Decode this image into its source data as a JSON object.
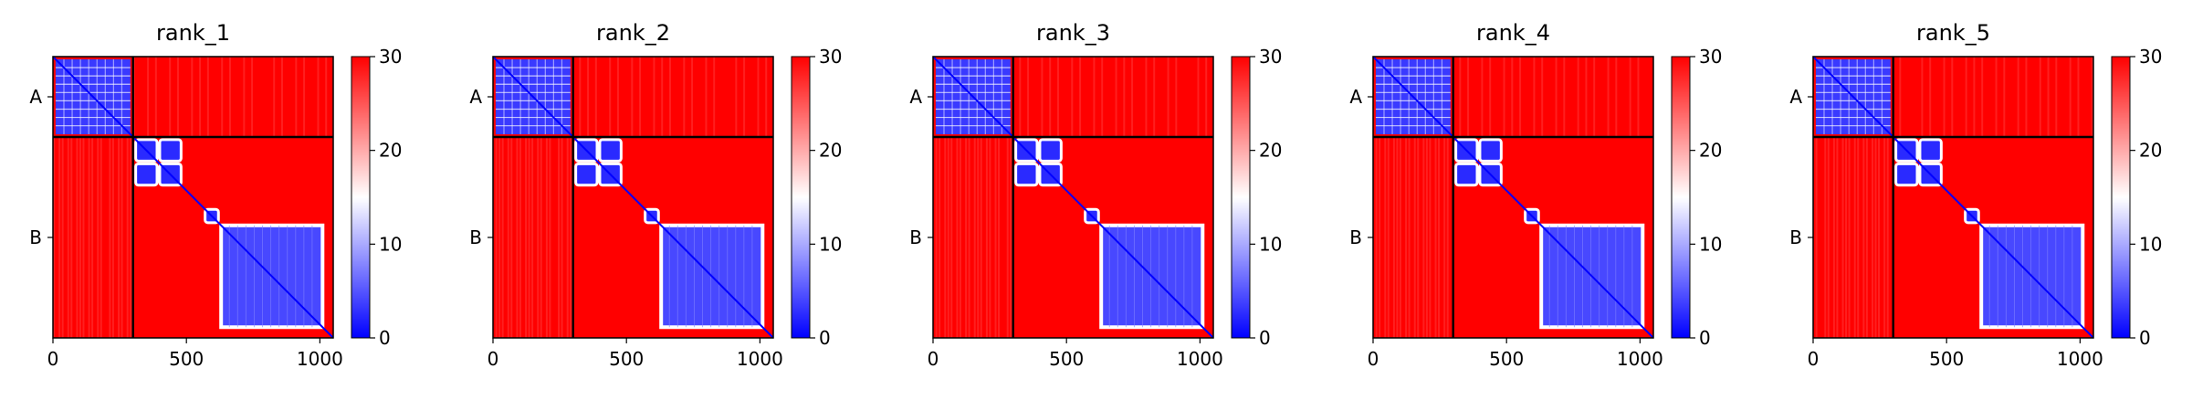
{
  "chart_data": [
    {
      "type": "heatmap",
      "title": "rank_1",
      "chains": [
        "A",
        "B"
      ],
      "chain_boundary": 300,
      "residues": 1050,
      "xticks": [
        0,
        500,
        1000
      ],
      "colorbar": {
        "min": 0,
        "max": 30,
        "ticks": [
          0,
          10,
          20,
          30
        ],
        "colors": [
          "#0000ff",
          "#ffffff",
          "#ff0000"
        ]
      }
    },
    {
      "type": "heatmap",
      "title": "rank_2",
      "chains": [
        "A",
        "B"
      ],
      "chain_boundary": 300,
      "residues": 1050,
      "xticks": [
        0,
        500,
        1000
      ],
      "colorbar": {
        "min": 0,
        "max": 30,
        "ticks": [
          0,
          10,
          20,
          30
        ],
        "colors": [
          "#0000ff",
          "#ffffff",
          "#ff0000"
        ]
      }
    },
    {
      "type": "heatmap",
      "title": "rank_3",
      "chains": [
        "A",
        "B"
      ],
      "chain_boundary": 300,
      "residues": 1050,
      "xticks": [
        0,
        500,
        1000
      ],
      "colorbar": {
        "min": 0,
        "max": 30,
        "ticks": [
          0,
          10,
          20,
          30
        ],
        "colors": [
          "#0000ff",
          "#ffffff",
          "#ff0000"
        ]
      }
    },
    {
      "type": "heatmap",
      "title": "rank_4",
      "chains": [
        "A",
        "B"
      ],
      "chain_boundary": 300,
      "residues": 1050,
      "xticks": [
        0,
        500,
        1000
      ],
      "colorbar": {
        "min": 0,
        "max": 30,
        "ticks": [
          0,
          10,
          20,
          30
        ],
        "colors": [
          "#0000ff",
          "#ffffff",
          "#ff0000"
        ]
      }
    },
    {
      "type": "heatmap",
      "title": "rank_5",
      "chains": [
        "A",
        "B"
      ],
      "chain_boundary": 300,
      "residues": 1050,
      "xticks": [
        0,
        500,
        1000
      ],
      "colorbar": {
        "min": 0,
        "max": 30,
        "ticks": [
          0,
          10,
          20,
          30
        ],
        "colors": [
          "#0000ff",
          "#ffffff",
          "#ff0000"
        ]
      }
    }
  ]
}
